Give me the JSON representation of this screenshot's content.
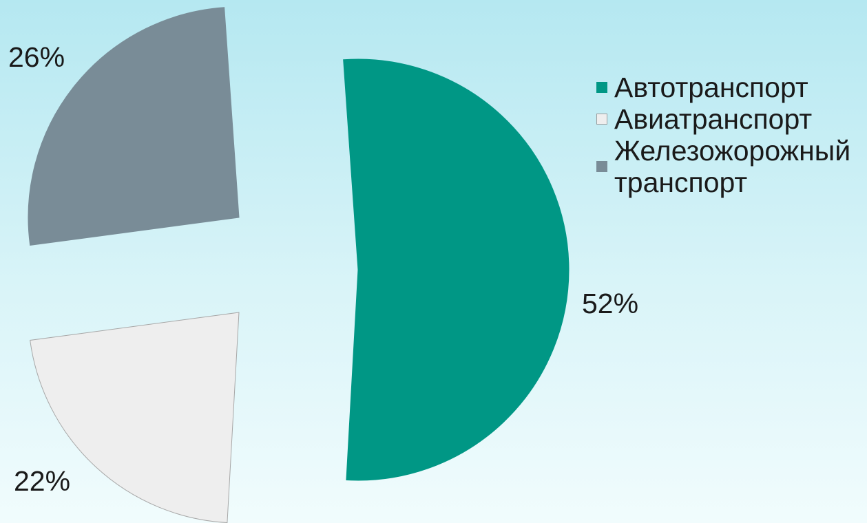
{
  "chart_data": {
    "type": "pie",
    "exploded": true,
    "slices": [
      {
        "label": "Автотранспорт",
        "value": 52,
        "value_label": "52%",
        "color": "#009785"
      },
      {
        "label": "Авиатранспорт",
        "value": 22,
        "value_label": "22%",
        "color": "#eeeeee"
      },
      {
        "label": "Железожорожный транспорт",
        "value": 26,
        "value_label": "26%",
        "color": "#798c97"
      }
    ],
    "legend": {
      "position": "right",
      "items": [
        {
          "label": "Автотранспорт",
          "color": "#009785"
        },
        {
          "label": "Авиатранспорт",
          "color": "#eeeeee"
        },
        {
          "label": "Железожорожный транспорт",
          "color": "#798c97"
        }
      ]
    }
  }
}
